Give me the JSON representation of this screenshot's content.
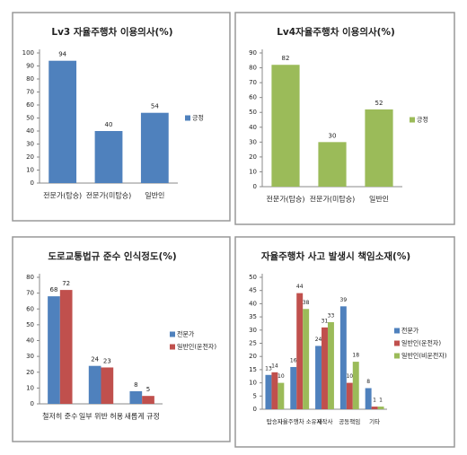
{
  "chart_data": [
    {
      "type": "bar",
      "title": "Lv3 자율주행차 이용의사(%)",
      "categories": [
        "전문가(탑승)",
        "전문가(미탑승)",
        "일반인"
      ],
      "series": [
        {
          "name": "긍정",
          "color": "#4f81bd",
          "values": [
            94,
            40,
            54
          ]
        }
      ],
      "ylim": [
        0,
        100
      ],
      "yticks": [
        0,
        10,
        20,
        30,
        40,
        50,
        60,
        70,
        80,
        90,
        100
      ],
      "legend": "right"
    },
    {
      "type": "bar",
      "title": "Lv4자율주행차 이용의사(%)",
      "categories": [
        "전문가(탑승)",
        "전문가(미탑승)",
        "일반인"
      ],
      "series": [
        {
          "name": "긍정",
          "color": "#9bbb59",
          "values": [
            82,
            30,
            52
          ]
        }
      ],
      "ylim": [
        0,
        90
      ],
      "yticks": [
        0,
        10,
        20,
        30,
        40,
        50,
        60,
        70,
        80,
        90
      ],
      "legend": "right"
    },
    {
      "type": "bar",
      "title": "도로교통법규 준수 인식정도(%)",
      "categories": [
        "철저히 준수",
        "일부 위반 허용",
        "새롭게 규정"
      ],
      "series": [
        {
          "name": "전문가",
          "color": "#4f81bd",
          "values": [
            68,
            24,
            8
          ]
        },
        {
          "name": "일반인(운전자)",
          "color": "#c0504d",
          "values": [
            72,
            23,
            5
          ]
        }
      ],
      "ylim": [
        0,
        80
      ],
      "yticks": [
        0,
        10,
        20,
        30,
        40,
        50,
        60,
        70,
        80
      ],
      "legend": "right"
    },
    {
      "type": "bar",
      "title": "자율주행차 사고 발생시 책임소재(%)",
      "categories": [
        "탑승자",
        "자율주행차 소유자",
        "제작사",
        "공동책임",
        "기타"
      ],
      "series": [
        {
          "name": "전문가",
          "color": "#4f81bd",
          "values": [
            13,
            16,
            24,
            39,
            8
          ]
        },
        {
          "name": "일반인(운전자)",
          "color": "#c0504d",
          "values": [
            14,
            44,
            31,
            10,
            1
          ]
        },
        {
          "name": "일반인(비운전자)",
          "color": "#9bbb59",
          "values": [
            10,
            38,
            33,
            18,
            1
          ]
        }
      ],
      "ylim": [
        0,
        50
      ],
      "yticks": [
        0,
        5,
        10,
        15,
        20,
        25,
        30,
        35,
        40,
        45,
        50
      ],
      "legend": "right"
    }
  ]
}
